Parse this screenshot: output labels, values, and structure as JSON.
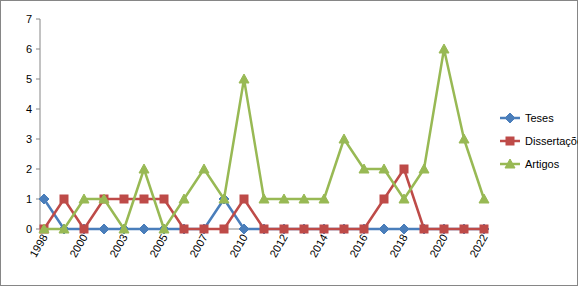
{
  "chart_data": {
    "type": "line",
    "categories": [
      "1998",
      null,
      "2000",
      null,
      "2003",
      null,
      "2005",
      null,
      "2007",
      null,
      "2010",
      null,
      "2012",
      null,
      "2014",
      null,
      "2016",
      null,
      "2018",
      null,
      "2020",
      null,
      "2022"
    ],
    "series": [
      {
        "name": "Teses",
        "color": "#4a7ebb",
        "marker": "diamond",
        "values": [
          1,
          0,
          0,
          0,
          0,
          0,
          0,
          0,
          0,
          1,
          0,
          0,
          0,
          0,
          0,
          0,
          0,
          0,
          0,
          0,
          0,
          0,
          0
        ]
      },
      {
        "name": "Dissertações",
        "color": "#be4b48",
        "marker": "square",
        "values": [
          0,
          1,
          0,
          1,
          1,
          1,
          1,
          0,
          0,
          0,
          1,
          0,
          0,
          0,
          0,
          0,
          0,
          1,
          2,
          0,
          0,
          0,
          0
        ]
      },
      {
        "name": "Artigos",
        "color": "#98b954",
        "marker": "triangle",
        "values": [
          0,
          0,
          1,
          1,
          0,
          2,
          0,
          1,
          2,
          1,
          5,
          1,
          1,
          1,
          1,
          3,
          2,
          2,
          1,
          2,
          6,
          3,
          1
        ]
      }
    ],
    "ylim": [
      0,
      7
    ],
    "yticks": [
      0,
      1,
      2,
      3,
      4,
      5,
      6,
      7
    ],
    "grid": false,
    "legend": "right"
  }
}
